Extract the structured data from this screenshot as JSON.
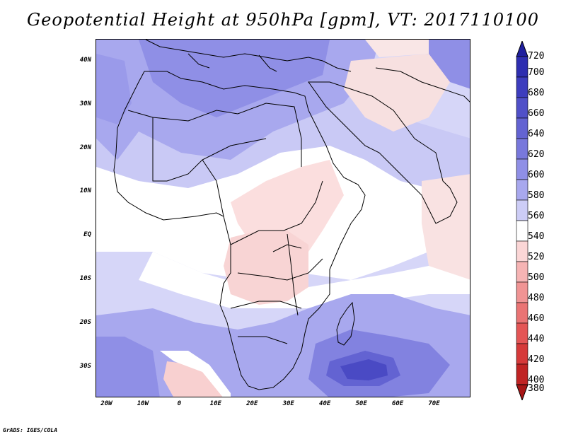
{
  "title": "Geopotential Height at 950hPa [gpm], VT: 2017110100",
  "footer": "GrADS: IGES/COLA",
  "map": {
    "lon_range": [
      -23,
      80
    ],
    "lat_range": [
      -37,
      45
    ],
    "lat_ticks": [
      {
        "value": 40,
        "label": "40N"
      },
      {
        "value": 30,
        "label": "30N"
      },
      {
        "value": 20,
        "label": "20N"
      },
      {
        "value": 10,
        "label": "10N"
      },
      {
        "value": 0,
        "label": "EQ"
      },
      {
        "value": -10,
        "label": "10S"
      },
      {
        "value": -20,
        "label": "20S"
      },
      {
        "value": -30,
        "label": "30S"
      }
    ],
    "lon_ticks": [
      {
        "value": -20,
        "label": "20W"
      },
      {
        "value": -10,
        "label": "10W"
      },
      {
        "value": 0,
        "label": "0"
      },
      {
        "value": 10,
        "label": "10E"
      },
      {
        "value": 20,
        "label": "20E"
      },
      {
        "value": 30,
        "label": "30E"
      },
      {
        "value": 40,
        "label": "40E"
      },
      {
        "value": 50,
        "label": "50E"
      },
      {
        "value": 60,
        "label": "60E"
      },
      {
        "value": 70,
        "label": "70E"
      }
    ]
  },
  "colorbar": {
    "levels": [
      "720",
      "700",
      "680",
      "660",
      "640",
      "620",
      "600",
      "580",
      "560",
      "540",
      "520",
      "500",
      "480",
      "460",
      "440",
      "420",
      "400",
      "380"
    ],
    "colors": [
      "#1f1f9e",
      "#2e2eb0",
      "#3d3dbe",
      "#5050c8",
      "#6363d2",
      "#7878dc",
      "#8f8fe6",
      "#a8a8ee",
      "#cdcdf6",
      "#ffffff",
      "#fbd6d6",
      "#f6b4b4",
      "#f09494",
      "#ea7474",
      "#e45656",
      "#d63a3a",
      "#c02424",
      "#a81616"
    ]
  }
}
